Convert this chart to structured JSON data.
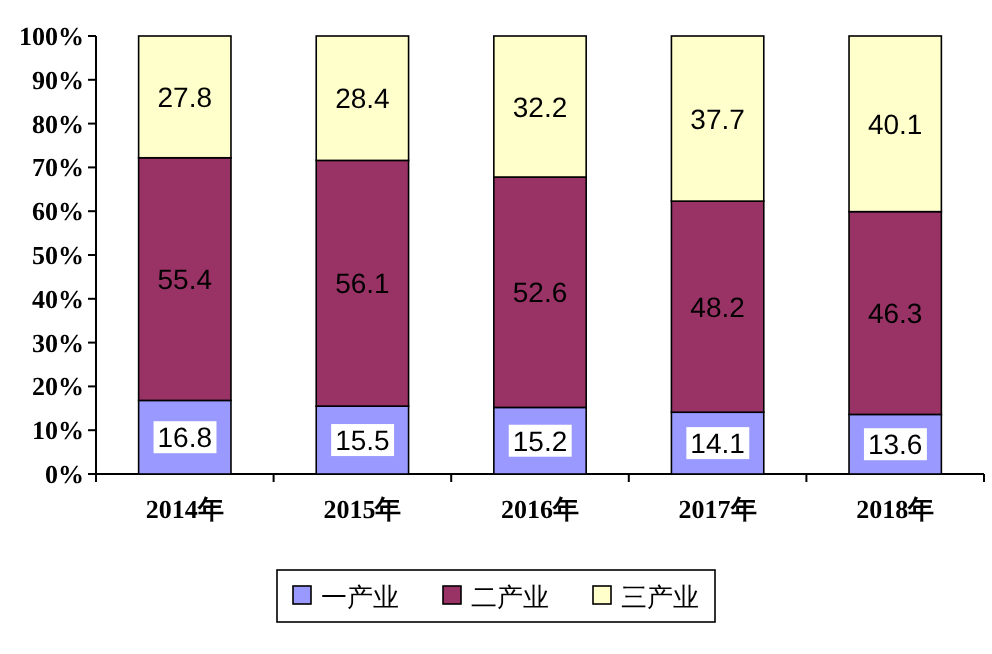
{
  "chart_data": {
    "type": "bar",
    "stacked": true,
    "categories": [
      "2014年",
      "2015年",
      "2016年",
      "2017年",
      "2018年"
    ],
    "series": [
      {
        "name": "一产业",
        "color": "#9999ff",
        "values": [
          16.8,
          15.5,
          15.2,
          14.1,
          13.6
        ]
      },
      {
        "name": "二产业",
        "color": "#993366",
        "values": [
          55.4,
          56.1,
          52.6,
          48.2,
          46.3
        ]
      },
      {
        "name": "三产业",
        "color": "#ffffcc",
        "values": [
          27.8,
          28.4,
          32.2,
          37.7,
          40.1
        ]
      }
    ],
    "ylim": [
      0,
      100
    ],
    "yticks": [
      {
        "value": 0,
        "label": "0%"
      },
      {
        "value": 10,
        "label": "10%"
      },
      {
        "value": 20,
        "label": "20%"
      },
      {
        "value": 30,
        "label": "30%"
      },
      {
        "value": 40,
        "label": "40%"
      },
      {
        "value": 50,
        "label": "50%"
      },
      {
        "value": 60,
        "label": "60%"
      },
      {
        "value": 70,
        "label": "70%"
      },
      {
        "value": 80,
        "label": "80%"
      },
      {
        "value": 90,
        "label": "90%"
      },
      {
        "value": 100,
        "label": "100%"
      }
    ],
    "data_labels": true,
    "legend": "bottom",
    "grid": false
  }
}
